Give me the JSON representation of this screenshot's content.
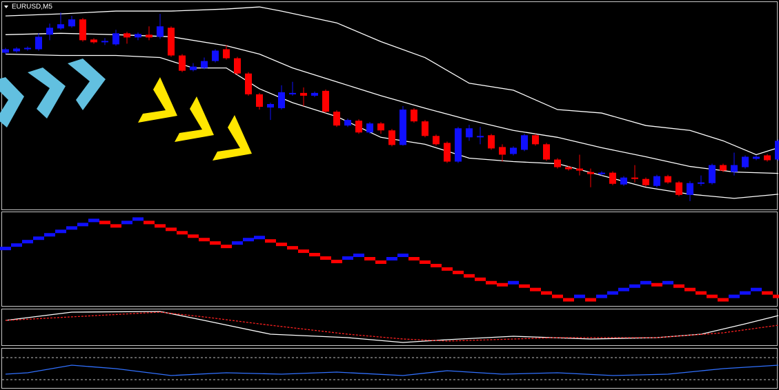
{
  "chart_data": [
    {
      "type": "candlestick",
      "title": "EURUSD,M5",
      "up_color": "#1010ff",
      "down_color": "#ff0000",
      "ylim": [
        0,
        300
      ],
      "open": [
        227,
        229,
        232,
        232,
        253,
        262,
        265,
        275,
        246,
        242,
        239,
        255,
        249,
        253,
        250,
        263,
        223,
        202,
        205,
        215,
        232,
        219,
        197,
        167,
        148,
        147,
        167,
        169,
        165,
        172,
        142,
        122,
        129,
        112,
        125,
        115,
        94,
        145,
        128,
        107,
        97,
        70,
        105,
        105,
        108,
        91,
        81,
        87,
        108,
        95,
        73,
        62,
        60,
        55,
        52,
        54,
        37,
        47,
        45,
        35,
        49,
        40,
        22,
        38,
        39,
        65,
        55,
        62,
        74,
        79,
        73
      ],
      "high": [
        234,
        235,
        236,
        255,
        269,
        285,
        280,
        277,
        248,
        248,
        260,
        257,
        256,
        265,
        283,
        265,
        225,
        212,
        220,
        232,
        238,
        221,
        199,
        169,
        155,
        180,
        185,
        177,
        171,
        174,
        144,
        132,
        131,
        127,
        127,
        117,
        150,
        147,
        130,
        109,
        99,
        120,
        123,
        120,
        110,
        95,
        92,
        110,
        110,
        97,
        75,
        64,
        80,
        60,
        56,
        56,
        49,
        65,
        47,
        51,
        51,
        42,
        42,
        50,
        67,
        67,
        83,
        79,
        79,
        81,
        102
      ],
      "low": [
        225,
        227,
        230,
        230,
        245,
        260,
        263,
        243,
        240,
        238,
        237,
        240,
        245,
        245,
        247,
        221,
        199,
        200,
        203,
        213,
        217,
        195,
        165,
        145,
        130,
        145,
        165,
        150,
        163,
        140,
        120,
        120,
        110,
        110,
        110,
        92,
        93,
        126,
        105,
        93,
        68,
        68,
        100,
        95,
        87,
        70,
        79,
        85,
        93,
        71,
        60,
        57,
        50,
        33,
        50,
        36,
        35,
        40,
        34,
        33,
        38,
        20,
        13,
        35,
        37,
        55,
        50,
        60,
        72,
        70,
        71
      ],
      "close": [
        232,
        233,
        234,
        250,
        263,
        268,
        275,
        245,
        242,
        244,
        255,
        249,
        254,
        249,
        265,
        223,
        201,
        207,
        215,
        230,
        219,
        197,
        167,
        149,
        153,
        170,
        169,
        165,
        169,
        142,
        122,
        130,
        112,
        125,
        115,
        94,
        145,
        128,
        107,
        95,
        70,
        118,
        118,
        107,
        89,
        80,
        90,
        108,
        95,
        73,
        62,
        59,
        57,
        52,
        54,
        38,
        47,
        45,
        36,
        49,
        40,
        22,
        39,
        40,
        65,
        57,
        65,
        77,
        77,
        72,
        100
      ],
      "bands": {
        "color": "#ffffff",
        "series": [
          {
            "x": [
              0,
              5,
              10,
              15,
              20,
              23,
              25,
              30,
              34,
              38,
              42,
              46,
              50,
              54,
              58,
              62,
              65,
              68,
              70
            ],
            "values": [
              280,
              283,
              287,
              287,
              290,
              293,
              287,
              270,
              243,
              220,
              183,
              173,
              145,
              140,
              122,
              115,
              100,
              80,
              90
            ]
          },
          {
            "x": [
              0,
              5,
              10,
              15,
              20,
              23,
              26,
              30,
              34,
              38,
              42,
              46,
              50,
              54,
              58,
              62,
              66,
              70
            ],
            "values": [
              253,
              255,
              253,
              250,
              237,
              225,
              205,
              185,
              165,
              147,
              130,
              115,
              105,
              90,
              77,
              63,
              55,
              53
            ]
          },
          {
            "x": [
              0,
              5,
              10,
              14,
              17,
              20,
              23,
              26,
              30,
              34,
              38,
              42,
              46,
              50,
              54,
              58,
              62,
              66,
              68,
              70
            ],
            "values": [
              225,
              223,
              223,
              220,
              205,
              205,
              175,
              155,
              135,
              105,
              95,
              75,
              70,
              67,
              50,
              33,
              23,
              17,
              20,
              23
            ]
          }
        ]
      }
    },
    {
      "type": "step",
      "up_color": "#1010ff",
      "down_color": "#ff0000",
      "ylim": [
        0,
        138
      ],
      "values": [
        85,
        90,
        95,
        100,
        105,
        110,
        115,
        120,
        126,
        123,
        118,
        123,
        128,
        123,
        118,
        113,
        108,
        103,
        98,
        93,
        88,
        93,
        98,
        101,
        96,
        91,
        86,
        81,
        76,
        71,
        66,
        71,
        75,
        70,
        65,
        70,
        75,
        70,
        65,
        60,
        55,
        50,
        45,
        40,
        35,
        32,
        35,
        30,
        25,
        20,
        15,
        10,
        15,
        10,
        15,
        20,
        25,
        30,
        35,
        32,
        35,
        30,
        25,
        20,
        15,
        10,
        15,
        20,
        25,
        20,
        15
      ]
    },
    {
      "type": "line",
      "ylim": [
        0,
        53
      ],
      "series": [
        {
          "color": "#ffffff",
          "x": [
            0,
            6,
            14,
            18,
            24,
            31,
            36,
            40,
            46,
            53,
            59,
            63,
            67,
            70
          ],
          "values": [
            37,
            49,
            50,
            37,
            17,
            12,
            5,
            9,
            14,
            10,
            12,
            17,
            32,
            44
          ]
        },
        {
          "color": "#ff2020",
          "dashed": true,
          "x": [
            0,
            14,
            18,
            24,
            31,
            36,
            40,
            50,
            59,
            65,
            70
          ],
          "values": [
            37,
            49,
            42,
            30,
            17,
            10,
            7,
            12,
            12,
            19,
            30
          ]
        }
      ]
    },
    {
      "type": "line",
      "ylim": [
        0,
        57
      ],
      "levels": [
        44,
        12
      ],
      "level_color": "#c0c0c0",
      "series": [
        {
          "color": "#3070ff",
          "x": [
            0,
            2,
            6,
            10,
            15,
            20,
            25,
            30,
            36,
            40,
            45,
            50,
            55,
            60,
            65,
            70
          ],
          "values": [
            20,
            22,
            33,
            28,
            18,
            22,
            20,
            23,
            18,
            25,
            20,
            22,
            18,
            20,
            28,
            33
          ]
        }
      ]
    }
  ]
}
